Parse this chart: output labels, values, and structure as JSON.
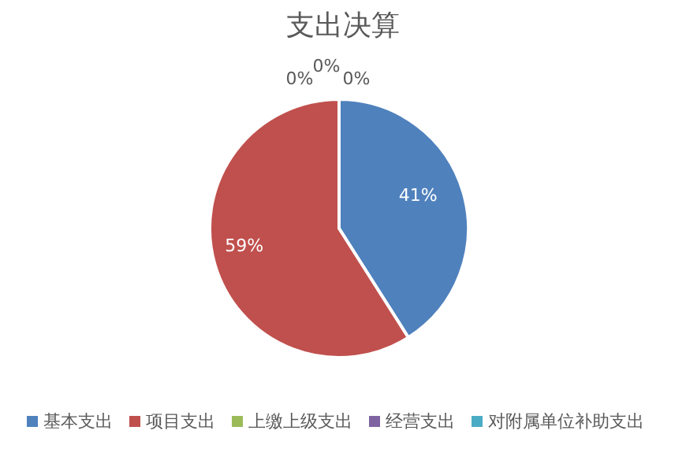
{
  "chart_data": {
    "type": "pie",
    "title": "支出决算",
    "categories": [
      "基本支出",
      "项目支出",
      "上缴上级支出",
      "经营支出",
      "对附属单位补助支出"
    ],
    "values": [
      41,
      59,
      0,
      0,
      0
    ],
    "colors": [
      "#4f81bd",
      "#c0504d",
      "#9bbb59",
      "#8064a2",
      "#4bacc6"
    ],
    "value_labels": [
      "41%",
      "59%",
      "0%",
      "0%",
      "0%"
    ],
    "legend": "bottom"
  }
}
